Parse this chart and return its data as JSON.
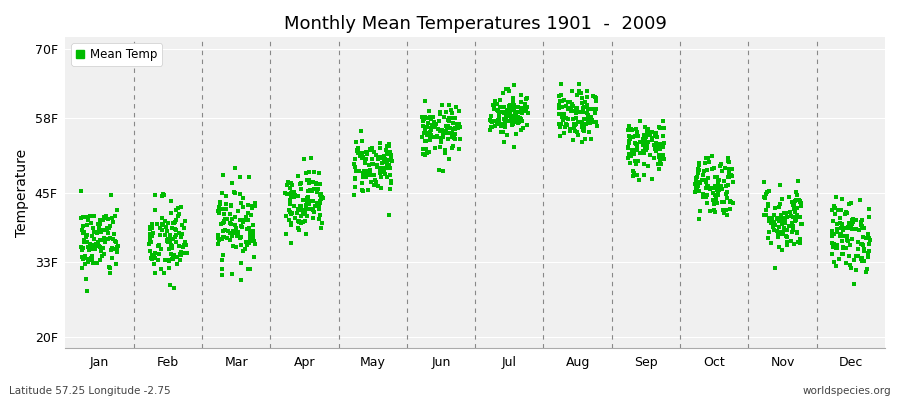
{
  "title": "Monthly Mean Temperatures 1901  -  2009",
  "ylabel": "Temperature",
  "xlabel_months": [
    "Jan",
    "Feb",
    "Mar",
    "Apr",
    "May",
    "Jun",
    "Jul",
    "Aug",
    "Sep",
    "Oct",
    "Nov",
    "Dec"
  ],
  "ytick_labels": [
    "20F",
    "33F",
    "45F",
    "58F",
    "70F"
  ],
  "ytick_values": [
    20,
    33,
    45,
    58,
    70
  ],
  "ylim": [
    18,
    72
  ],
  "legend_label": "Mean Temp",
  "dot_color": "#00BB00",
  "dot_size": 5,
  "background_color": "#F0F0F0",
  "fig_background": "#FFFFFF",
  "subtitle_left": "Latitude 57.25 Longitude -2.75",
  "subtitle_right": "worldspecies.org",
  "num_years": 109,
  "monthly_means_f": [
    36.5,
    36.5,
    39.5,
    43.7,
    49.8,
    55.5,
    58.8,
    58.2,
    53.0,
    46.5,
    40.5,
    37.5
  ],
  "monthly_stds_f": [
    3.2,
    3.8,
    3.5,
    2.8,
    2.5,
    2.3,
    2.0,
    2.2,
    2.5,
    2.8,
    3.0,
    3.2
  ]
}
